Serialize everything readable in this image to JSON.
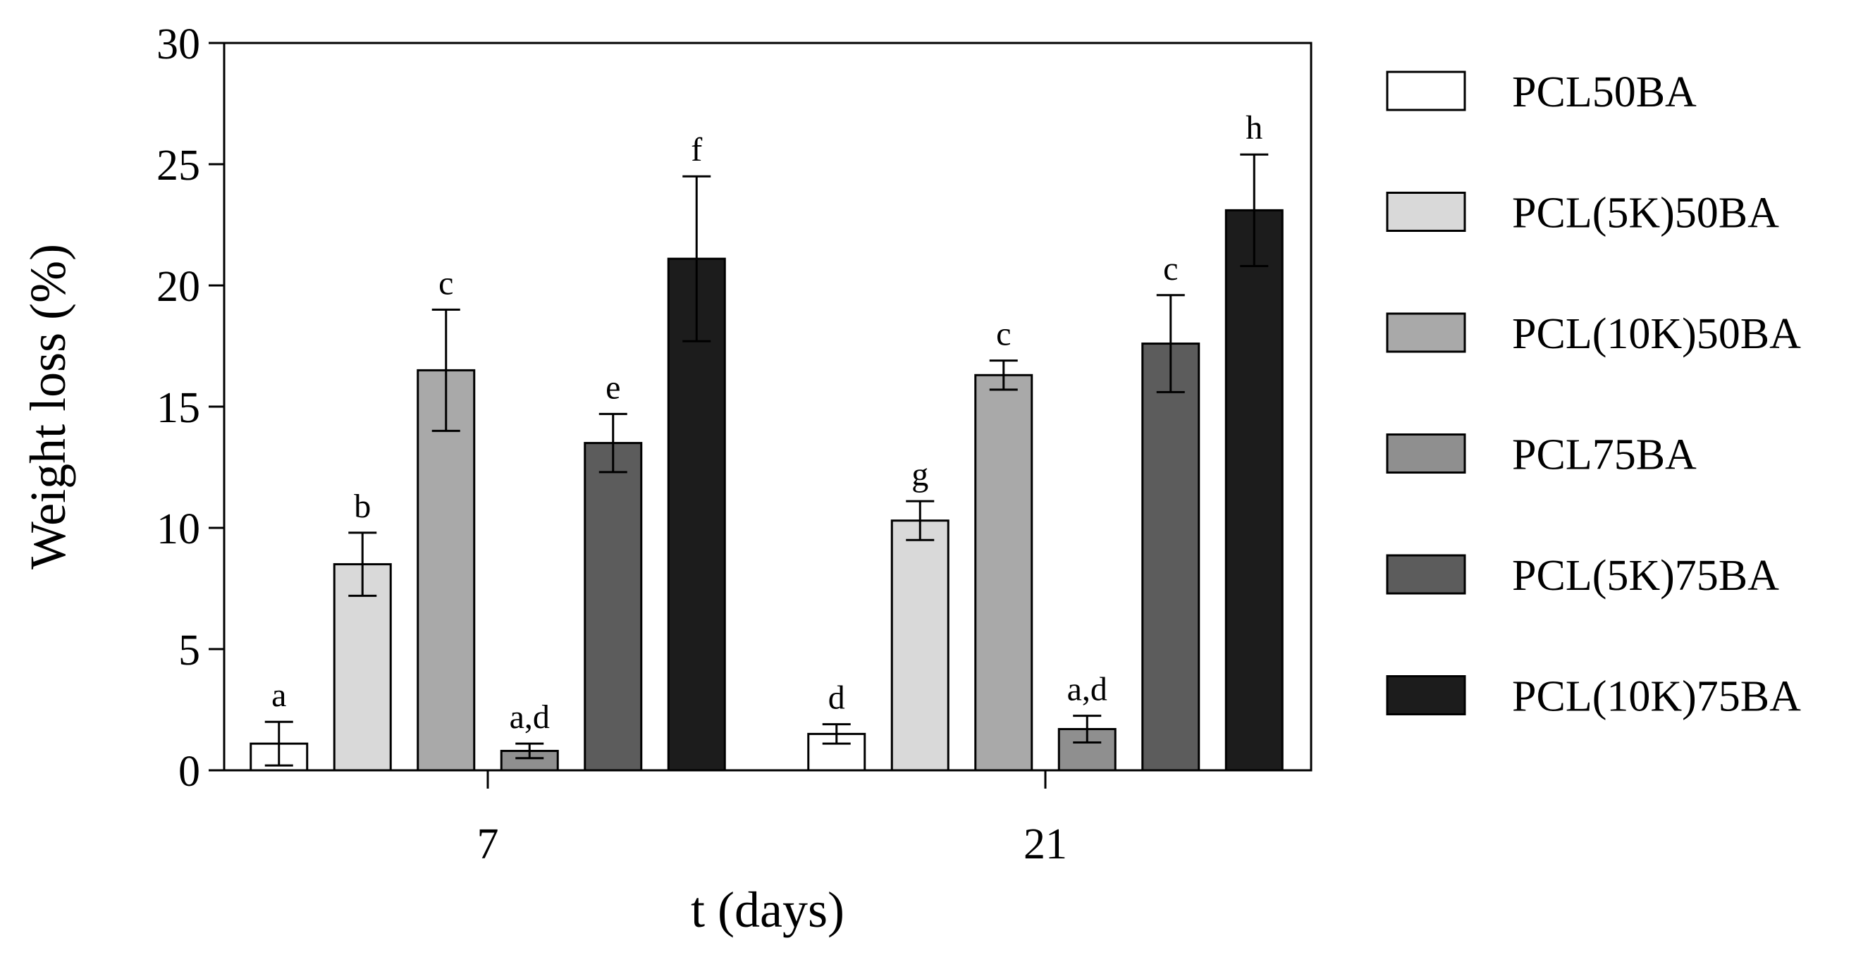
{
  "chart_data": {
    "type": "bar",
    "xlabel": "t (days)",
    "ylabel": "Weight loss (%)",
    "ylim": [
      0,
      30
    ],
    "yticks": [
      "0",
      "5",
      "10",
      "15",
      "20",
      "25",
      "30"
    ],
    "categories": [
      "7",
      "21"
    ],
    "legend_position": "right",
    "series": [
      {
        "name": "PCL50BA",
        "color": "#ffffff",
        "values": [
          1.1,
          1.5
        ],
        "errors": [
          0.9,
          0.4
        ],
        "labels": [
          "a",
          "d"
        ]
      },
      {
        "name": "PCL(5K)50BA",
        "color": "#d9d9d9",
        "values": [
          8.5,
          10.3
        ],
        "errors": [
          1.3,
          0.8
        ],
        "labels": [
          "b",
          "g"
        ]
      },
      {
        "name": "PCL(10K)50BA",
        "color": "#a9a9a9",
        "values": [
          16.5,
          16.3
        ],
        "errors": [
          2.5,
          0.6
        ],
        "labels": [
          "c",
          "c"
        ]
      },
      {
        "name": "PCL75BA",
        "color": "#8f8f8f",
        "values": [
          0.8,
          1.7
        ],
        "errors": [
          0.3,
          0.55
        ],
        "labels": [
          "a,d",
          "a,d"
        ]
      },
      {
        "name": "PCL(5K)75BA",
        "color": "#5c5c5c",
        "values": [
          13.5,
          17.6
        ],
        "errors": [
          1.2,
          2.0
        ],
        "labels": [
          "e",
          "c"
        ]
      },
      {
        "name": "PCL(10K)75BA",
        "color": "#1c1c1c",
        "values": [
          21.1,
          23.1
        ],
        "errors": [
          3.4,
          2.3
        ],
        "labels": [
          "f",
          "h"
        ]
      }
    ]
  }
}
